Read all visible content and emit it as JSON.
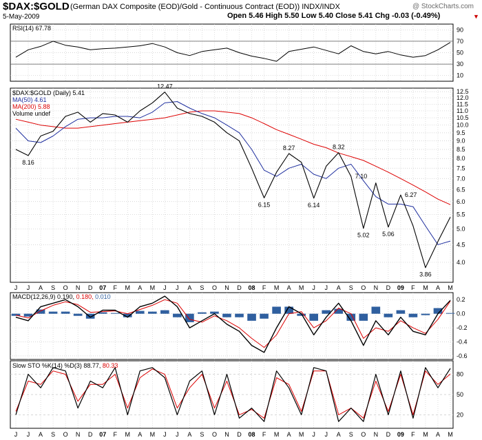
{
  "header": {
    "symbol": "$DAX:$GOLD",
    "description": "(German DAX Composite (EOD)/Gold - Continuous Contract (EOD)) INDX/INDX",
    "watermark": "@ StockCharts.com",
    "date": "5-May-2009",
    "ohlc": "Open 5.46  High 5.50  Low 5.40  Close 5.41  Chg -0.03 (-0.49%)",
    "down_arrow": "▼"
  },
  "colors": {
    "price": "#000000",
    "ma50": "#1f2f9f",
    "ma200": "#dd0000",
    "macd_signal": "#dd0000",
    "macd_hist": "#2f5f9f",
    "rsi_fill": "#6f8f6f",
    "grid": "#c8c8c8"
  },
  "chart_data": [
    {
      "type": "line",
      "panel": "RSI",
      "legend": "RSI(14) 67.78",
      "ylim": [
        0,
        100
      ],
      "y_ticks": [
        10,
        30,
        50,
        70,
        90
      ],
      "reference_lines": [
        30,
        70
      ],
      "x": [
        "J",
        "J",
        "A",
        "S",
        "O",
        "N",
        "D",
        "07",
        "F",
        "M",
        "A",
        "M",
        "J",
        "J",
        "A",
        "S",
        "O",
        "N",
        "D",
        "08",
        "F",
        "M",
        "A",
        "M",
        "J",
        "J",
        "A",
        "S",
        "O",
        "N",
        "D",
        "09",
        "F",
        "M",
        "A",
        "M"
      ],
      "series": [
        {
          "name": "RSI(14)",
          "values": [
            42,
            55,
            61,
            70,
            63,
            60,
            55,
            57,
            58,
            60,
            62,
            66,
            60,
            50,
            45,
            52,
            55,
            58,
            50,
            44,
            40,
            35,
            52,
            56,
            60,
            54,
            48,
            62,
            52,
            48,
            52,
            46,
            42,
            45,
            55,
            68
          ]
        }
      ]
    },
    {
      "type": "line",
      "panel": "Price",
      "legend": [
        "$DAX:$GOLD (Daily) 5.41",
        "MA(50) 4.61",
        "MA(200) 5.88",
        "Volume undef"
      ],
      "ylim": [
        3.5,
        12.8
      ],
      "log_scale": true,
      "y_ticks": [
        4.0,
        4.5,
        5.0,
        5.5,
        6.0,
        6.5,
        7.0,
        7.5,
        8.0,
        8.5,
        9.0,
        9.5,
        10.0,
        10.5,
        11.0,
        11.5,
        12.0,
        12.5
      ],
      "x": [
        "J",
        "J",
        "A",
        "S",
        "O",
        "N",
        "D",
        "07",
        "F",
        "M",
        "A",
        "M",
        "J",
        "J",
        "A",
        "S",
        "O",
        "N",
        "D",
        "08",
        "F",
        "M",
        "A",
        "M",
        "J",
        "J",
        "A",
        "S",
        "O",
        "N",
        "D",
        "09",
        "F",
        "M",
        "A",
        "M"
      ],
      "series": [
        {
          "name": "$DAX:$GOLD",
          "values": [
            8.5,
            8.16,
            9.3,
            9.6,
            10.6,
            10.9,
            10.2,
            10.8,
            10.7,
            10.2,
            11.0,
            11.6,
            12.47,
            11.2,
            10.8,
            10.6,
            10.2,
            9.5,
            9.0,
            7.5,
            6.15,
            7.3,
            8.27,
            7.8,
            6.14,
            7.6,
            8.32,
            7.1,
            5.02,
            6.8,
            5.06,
            6.27,
            5.1,
            3.86,
            4.6,
            5.41
          ]
        },
        {
          "name": "MA(50)",
          "values": [
            9.8,
            9.0,
            8.9,
            9.3,
            9.9,
            10.4,
            10.5,
            10.5,
            10.6,
            10.6,
            10.5,
            10.9,
            11.6,
            11.7,
            11.2,
            10.8,
            10.5,
            10.0,
            9.5,
            8.5,
            7.4,
            7.1,
            7.5,
            7.7,
            7.2,
            7.0,
            7.5,
            7.7,
            6.9,
            6.2,
            5.9,
            5.9,
            5.8,
            5.1,
            4.5,
            4.61
          ]
        },
        {
          "name": "MA(200)",
          "values": [
            10.4,
            10.2,
            10.0,
            9.9,
            9.8,
            9.8,
            9.9,
            10.0,
            10.1,
            10.2,
            10.3,
            10.4,
            10.5,
            10.7,
            10.9,
            11.0,
            11.0,
            10.9,
            10.8,
            10.5,
            10.1,
            9.7,
            9.4,
            9.1,
            8.8,
            8.6,
            8.3,
            8.1,
            7.9,
            7.6,
            7.3,
            7.0,
            6.7,
            6.4,
            6.1,
            5.88
          ]
        }
      ],
      "annotations": [
        {
          "label": "8.16",
          "index": 1,
          "value": 8.16,
          "position": "below"
        },
        {
          "label": "12.47",
          "index": 12,
          "value": 12.47,
          "position": "above"
        },
        {
          "label": "8.27",
          "index": 22,
          "value": 8.27,
          "position": "above"
        },
        {
          "label": "6.15",
          "index": 20,
          "value": 6.15,
          "position": "below"
        },
        {
          "label": "6.14",
          "index": 24,
          "value": 6.14,
          "position": "below"
        },
        {
          "label": "8.32",
          "index": 26,
          "value": 8.32,
          "position": "above"
        },
        {
          "label": "7.10",
          "index": 27,
          "value": 7.1,
          "position": "right"
        },
        {
          "label": "5.02",
          "index": 28,
          "value": 5.02,
          "position": "below"
        },
        {
          "label": "5.06",
          "index": 30,
          "value": 5.06,
          "position": "below"
        },
        {
          "label": "6.27",
          "index": 31,
          "value": 6.27,
          "position": "right"
        },
        {
          "label": "3.86",
          "index": 33,
          "value": 3.86,
          "position": "below"
        }
      ]
    },
    {
      "type": "line",
      "panel": "MACD",
      "legend_prefix": "MACD(12,26,9)",
      "legend_values": [
        "0.190,",
        "0.180,",
        "0.010"
      ],
      "ylim": [
        -0.65,
        0.3
      ],
      "y_ticks": [
        0.2,
        0.0,
        -0.2,
        -0.4,
        -0.6
      ],
      "x": [
        "J",
        "J",
        "A",
        "S",
        "O",
        "N",
        "D",
        "07",
        "F",
        "M",
        "A",
        "M",
        "J",
        "J",
        "A",
        "S",
        "O",
        "N",
        "D",
        "08",
        "F",
        "M",
        "A",
        "M",
        "J",
        "J",
        "A",
        "S",
        "O",
        "N",
        "D",
        "09",
        "F",
        "M",
        "A",
        "M"
      ],
      "series": [
        {
          "name": "MACD",
          "values": [
            -0.05,
            -0.1,
            0.1,
            0.15,
            0.2,
            0.1,
            -0.05,
            0.05,
            0.05,
            -0.05,
            0.1,
            0.15,
            0.25,
            0.1,
            -0.2,
            -0.1,
            0.0,
            -0.15,
            -0.25,
            -0.45,
            -0.55,
            -0.2,
            0.1,
            0.0,
            -0.3,
            -0.05,
            0.15,
            -0.1,
            -0.45,
            -0.1,
            -0.3,
            -0.05,
            -0.25,
            -0.3,
            0.0,
            0.19
          ]
        },
        {
          "name": "Signal",
          "values": [
            -0.02,
            -0.06,
            0.04,
            0.12,
            0.17,
            0.13,
            0.02,
            0.03,
            0.04,
            0.0,
            0.06,
            0.12,
            0.2,
            0.15,
            -0.08,
            -0.12,
            -0.03,
            -0.1,
            -0.2,
            -0.35,
            -0.48,
            -0.3,
            0.0,
            0.03,
            -0.2,
            -0.1,
            0.08,
            0.0,
            -0.35,
            -0.2,
            -0.25,
            -0.1,
            -0.2,
            -0.28,
            -0.08,
            0.18
          ]
        },
        {
          "name": "Histogram",
          "values": [
            -0.03,
            -0.04,
            0.06,
            0.03,
            0.03,
            -0.03,
            -0.07,
            0.02,
            0.01,
            -0.05,
            0.04,
            0.03,
            0.05,
            -0.05,
            -0.12,
            0.02,
            0.03,
            -0.05,
            -0.05,
            -0.1,
            -0.07,
            0.1,
            0.1,
            -0.03,
            -0.1,
            0.05,
            0.07,
            -0.1,
            -0.1,
            0.1,
            -0.05,
            0.05,
            -0.05,
            -0.02,
            0.08,
            0.01
          ]
        }
      ]
    },
    {
      "type": "line",
      "panel": "Stochastic",
      "legend_prefix": "Slow STO %K(14) %D(3)",
      "legend_values": [
        "88.77,",
        "80.33"
      ],
      "ylim": [
        0,
        100
      ],
      "y_ticks": [
        20,
        50,
        80
      ],
      "x": [
        "J",
        "J",
        "A",
        "S",
        "O",
        "N",
        "D",
        "07",
        "F",
        "M",
        "A",
        "M",
        "J",
        "J",
        "A",
        "S",
        "O",
        "N",
        "D",
        "08",
        "F",
        "M",
        "A",
        "M",
        "J",
        "J",
        "A",
        "S",
        "O",
        "N",
        "D",
        "09",
        "F",
        "M",
        "A",
        "M"
      ],
      "series": [
        {
          "name": "%K",
          "values": [
            20,
            80,
            60,
            90,
            85,
            30,
            70,
            60,
            90,
            20,
            85,
            90,
            75,
            20,
            70,
            85,
            20,
            80,
            15,
            30,
            10,
            85,
            60,
            20,
            90,
            85,
            10,
            30,
            10,
            80,
            20,
            85,
            15,
            90,
            60,
            88.77
          ]
        },
        {
          "name": "%D",
          "values": [
            25,
            70,
            65,
            85,
            80,
            40,
            65,
            65,
            80,
            30,
            75,
            88,
            80,
            30,
            60,
            80,
            30,
            70,
            20,
            28,
            15,
            75,
            65,
            25,
            85,
            85,
            20,
            30,
            15,
            70,
            25,
            80,
            20,
            85,
            65,
            80.33
          ]
        }
      ]
    }
  ],
  "months_axis": [
    "J",
    "J",
    "A",
    "S",
    "O",
    "N",
    "D",
    "07",
    "F",
    "M",
    "A",
    "M",
    "J",
    "J",
    "A",
    "S",
    "O",
    "N",
    "D",
    "08",
    "F",
    "M",
    "A",
    "M",
    "J",
    "J",
    "A",
    "S",
    "O",
    "N",
    "D",
    "09",
    "F",
    "M",
    "A",
    "M"
  ]
}
